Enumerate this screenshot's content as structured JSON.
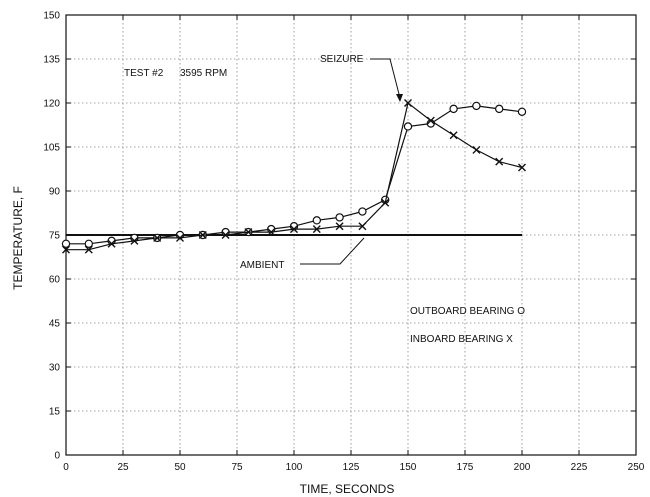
{
  "chart_data": {
    "type": "line",
    "title": "",
    "xlabel": "TIME, SECONDS",
    "ylabel": "TEMPERATURE, F",
    "xlim": [
      0,
      250
    ],
    "ylim": [
      0,
      150
    ],
    "xticks": [
      0,
      25,
      50,
      75,
      100,
      125,
      150,
      175,
      200,
      225,
      250
    ],
    "yticks": [
      0,
      15,
      30,
      45,
      60,
      75,
      90,
      105,
      120,
      135,
      150
    ],
    "grid": "dotted",
    "ambient": 75,
    "series": [
      {
        "name": "OUTBOARD BEARING",
        "marker": "circle",
        "x": [
          0,
          10,
          20,
          30,
          40,
          50,
          60,
          70,
          80,
          90,
          100,
          110,
          120,
          130,
          140,
          150,
          160,
          170,
          180,
          190,
          200
        ],
        "y": [
          72,
          72,
          73,
          74,
          74,
          75,
          75,
          76,
          76,
          77,
          78,
          80,
          81,
          83,
          87,
          112,
          113,
          118,
          119,
          118,
          117
        ]
      },
      {
        "name": "INBOARD BEARING",
        "marker": "x",
        "x": [
          0,
          10,
          20,
          30,
          40,
          50,
          60,
          70,
          80,
          90,
          100,
          110,
          120,
          130,
          140,
          150,
          160,
          170,
          180,
          190,
          200
        ],
        "y": [
          70,
          70,
          72,
          73,
          74,
          74,
          75,
          75,
          76,
          76,
          77,
          77,
          78,
          78,
          86,
          120,
          114,
          109,
          104,
          100,
          98
        ]
      }
    ],
    "annotations": {
      "test": "TEST #2",
      "rpm": "3595 RPM",
      "seizure": "SEIZURE",
      "ambient": "AMBIENT",
      "legend_outboard": "OUTBOARD BEARING  O",
      "legend_inboard": "INBOARD BEARING   X"
    }
  }
}
